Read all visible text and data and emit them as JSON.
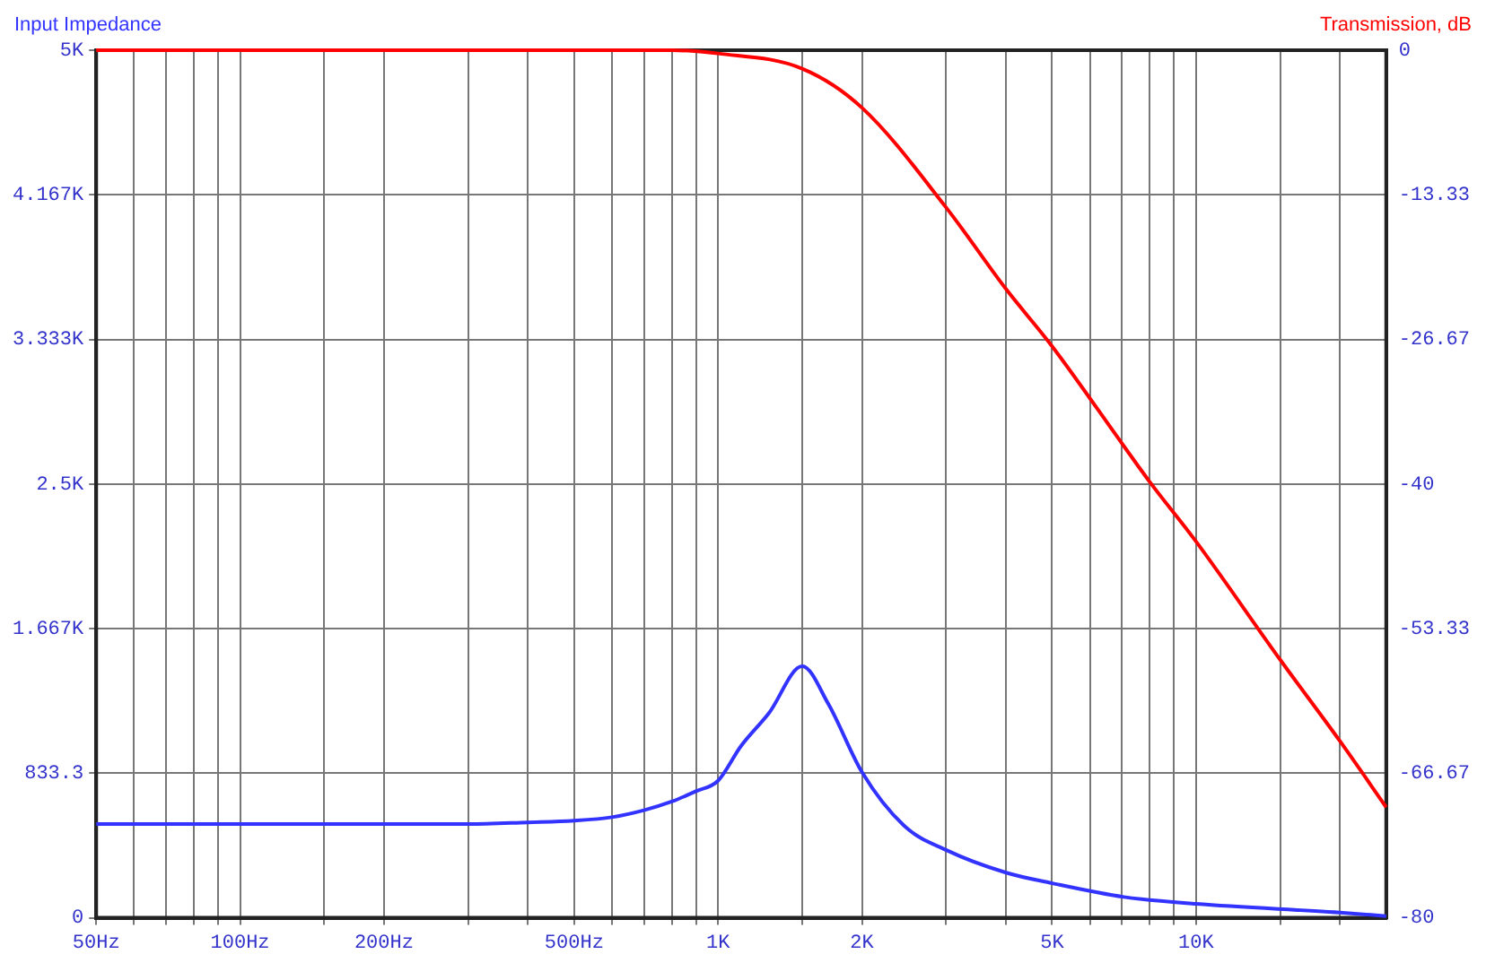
{
  "chart_data": {
    "type": "line",
    "ylabel": "Input Impedance",
    "y2label": "Transmission, dB",
    "log": "x",
    "grid": true,
    "line_style": "solid",
    "xlim": [
      50,
      25000
    ],
    "xticks": [
      {
        "value": 50,
        "label": "50Hz"
      },
      {
        "value": 60,
        "label": null
      },
      {
        "value": 70,
        "label": null
      },
      {
        "value": 80,
        "label": null
      },
      {
        "value": 90,
        "label": null
      },
      {
        "value": 100,
        "label": "100Hz"
      },
      {
        "value": 150,
        "label": null
      },
      {
        "value": 200,
        "label": "200Hz"
      },
      {
        "value": 300,
        "label": null
      },
      {
        "value": 400,
        "label": null
      },
      {
        "value": 500,
        "label": "500Hz"
      },
      {
        "value": 600,
        "label": null
      },
      {
        "value": 700,
        "label": null
      },
      {
        "value": 800,
        "label": null
      },
      {
        "value": 900,
        "label": null
      },
      {
        "value": 1000,
        "label": "1K"
      },
      {
        "value": 1500,
        "label": null
      },
      {
        "value": 2000,
        "label": "2K"
      },
      {
        "value": 3000,
        "label": null
      },
      {
        "value": 4000,
        "label": null
      },
      {
        "value": 5000,
        "label": "5K"
      },
      {
        "value": 6000,
        "label": null
      },
      {
        "value": 7000,
        "label": null
      },
      {
        "value": 8000,
        "label": null
      },
      {
        "value": 9000,
        "label": null
      },
      {
        "value": 10000,
        "label": "10K"
      },
      {
        "value": 15000,
        "label": null
      },
      {
        "value": 20000,
        "label": null
      }
    ],
    "ylim": [
      0,
      5000
    ],
    "yticks": [
      0,
      833.3,
      {
        "value": 1666.7,
        "label": "1.667K"
      },
      {
        "value": 2500,
        "label": "2.5K"
      },
      {
        "value": 3333.3,
        "label": "3.333K"
      },
      {
        "value": 4166.7,
        "label": "4.167K"
      },
      {
        "value": 5000,
        "label": "5K"
      }
    ],
    "y2lim": [
      -80,
      0
    ],
    "y2ticks": [
      0,
      -13.33,
      -26.67,
      -40,
      -53.33,
      -66.67,
      -80
    ],
    "series": [
      {
        "color": "#3333ff",
        "x": [
          50,
          100,
          200,
          300,
          400,
          500,
          600,
          700,
          800,
          900,
          1000,
          1117,
          1278,
          1500,
          1703,
          2000,
          2452,
          3005,
          4006,
          4987,
          7063,
          10000,
          20000,
          25000
        ],
        "values": [
          540,
          540,
          540,
          540,
          550,
          560,
          580,
          620,
          670,
          730,
          790,
          990,
          1180,
          1450,
          1230,
          840,
          530,
          390,
          260,
          200,
          120,
          80,
          30,
          10
        ]
      },
      {
        "color": "#ff0000",
        "axis": "y2",
        "x": [
          50,
          100,
          200,
          500,
          800,
          1000,
          1500,
          2000,
          3000,
          4000,
          5000,
          7063,
          8000,
          10000,
          15000,
          20000,
          25000
        ],
        "values": [
          0,
          0,
          0,
          0,
          0,
          -0.3,
          -1.7,
          -5.3,
          -14.5,
          -22,
          -27.3,
          -36.5,
          -39.8,
          -45.3,
          -56.2,
          -63.7,
          -69.8
        ]
      }
    ]
  }
}
